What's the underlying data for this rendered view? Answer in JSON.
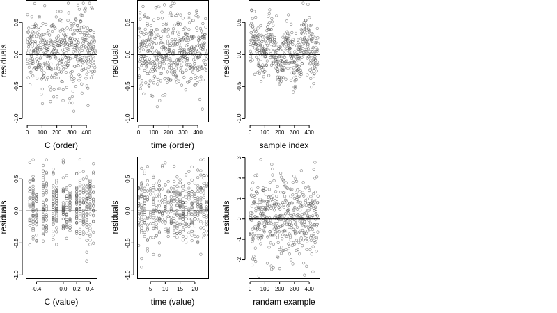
{
  "chart_data": [
    {
      "type": "scatter",
      "xlabel": "C (order)",
      "ylabel": "residuals",
      "xlim": [
        -10,
        470
      ],
      "ylim": [
        -1.05,
        0.85
      ],
      "xticks": [
        0,
        100,
        200,
        300,
        400
      ],
      "xtick_labels": [
        "0",
        "100",
        "200",
        "300",
        "400"
      ],
      "yticks": [
        -1.0,
        -0.5,
        0.0,
        0.5
      ],
      "ytick_labels": [
        "-1.0",
        "-0.5",
        "0.0",
        "0.5"
      ],
      "hline": 0,
      "grid": false,
      "pattern": "uniform-index",
      "n": 460,
      "x": [
        0,
        460
      ],
      "y_range": [
        -1.0,
        0.8
      ]
    },
    {
      "type": "scatter",
      "xlabel": "time (order)",
      "ylabel": "residuals",
      "xlim": [
        -10,
        470
      ],
      "ylim": [
        -1.05,
        0.85
      ],
      "xticks": [
        0,
        100,
        200,
        300,
        400
      ],
      "xtick_labels": [
        "0",
        "100",
        "200",
        "300",
        "400"
      ],
      "yticks": [
        -1.0,
        -0.5,
        0.0,
        0.5
      ],
      "ytick_labels": [
        "-1.0",
        "-0.5",
        "0.0",
        "0.5"
      ],
      "hline": 0,
      "grid": false,
      "pattern": "uniform-index",
      "n": 460,
      "x": [
        0,
        460
      ],
      "y_range": [
        -1.0,
        0.8
      ]
    },
    {
      "type": "scatter",
      "xlabel": "sample index",
      "ylabel": "residuals",
      "xlim": [
        -10,
        470
      ],
      "ylim": [
        -1.05,
        0.85
      ],
      "xticks": [
        0,
        100,
        200,
        300,
        400
      ],
      "xtick_labels": [
        "0",
        "100",
        "200",
        "300",
        "400"
      ],
      "yticks": [
        -1.0,
        -0.5,
        0.0,
        0.5
      ],
      "ytick_labels": [
        "-1.0",
        "-0.5",
        "0.0",
        "0.5"
      ],
      "hline": 0,
      "grid": false,
      "pattern": "clustered-index",
      "n": 460,
      "x": [
        0,
        460
      ],
      "y_range": [
        -1.0,
        0.8
      ]
    },
    {
      "type": "scatter",
      "xlabel": "C (value)",
      "ylabel": "residuals",
      "xlim": [
        -0.56,
        0.5
      ],
      "ylim": [
        -1.05,
        0.85
      ],
      "xticks": [
        -0.4,
        0.0,
        0.2,
        0.4
      ],
      "xtick_labels": [
        "-0.4",
        "0.0",
        "0.2",
        "0.4"
      ],
      "yticks": [
        -1.0,
        -0.5,
        0.0,
        0.5
      ],
      "ytick_labels": [
        "-1.0",
        "-0.5",
        "0.0",
        "0.5"
      ],
      "hline": 0,
      "grid": false,
      "pattern": "discrete-x",
      "n": 460,
      "x_levels": [
        -0.5,
        -0.45,
        -0.4,
        -0.3,
        -0.25,
        -0.15,
        -0.1,
        0.0,
        0.05,
        0.1,
        0.2,
        0.25,
        0.3,
        0.35,
        0.4,
        0.45
      ],
      "y_range": [
        -1.0,
        0.8
      ]
    },
    {
      "type": "scatter",
      "xlabel": "time (value)",
      "ylabel": "residuals",
      "xlim": [
        0.5,
        24.5
      ],
      "ylim": [
        -1.05,
        0.85
      ],
      "xticks": [
        5,
        10,
        15,
        20
      ],
      "xtick_labels": [
        "5",
        "10",
        "15",
        "20"
      ],
      "yticks": [
        -1.0,
        -0.5,
        0.0,
        0.5
      ],
      "ytick_labels": [
        "-1.0",
        "-0.5",
        "0.0",
        "0.5"
      ],
      "hline": 0,
      "grid": false,
      "pattern": "discrete-x",
      "n": 460,
      "x_levels": [
        1,
        2,
        3,
        4,
        5,
        6,
        7,
        8,
        9,
        10,
        11,
        12,
        13,
        14,
        15,
        16,
        17,
        18,
        19,
        20,
        21,
        22,
        23,
        24
      ],
      "y_range": [
        -1.0,
        0.8
      ]
    },
    {
      "type": "scatter",
      "xlabel": "randam example",
      "ylabel": "residuals",
      "xlim": [
        -10,
        470
      ],
      "ylim": [
        -2.9,
        3.05
      ],
      "xticks": [
        0,
        100,
        200,
        300,
        400
      ],
      "xtick_labels": [
        "0",
        "100",
        "200",
        "300",
        "400"
      ],
      "yticks": [
        -2,
        -1,
        0,
        1,
        2,
        3
      ],
      "ytick_labels": [
        "-2",
        "-1",
        "0",
        "1",
        "2",
        "3"
      ],
      "hline": 0,
      "grid": false,
      "pattern": "normal-index",
      "n": 460,
      "x": [
        0,
        460
      ],
      "y_range": [
        -2.8,
        2.9
      ]
    }
  ]
}
